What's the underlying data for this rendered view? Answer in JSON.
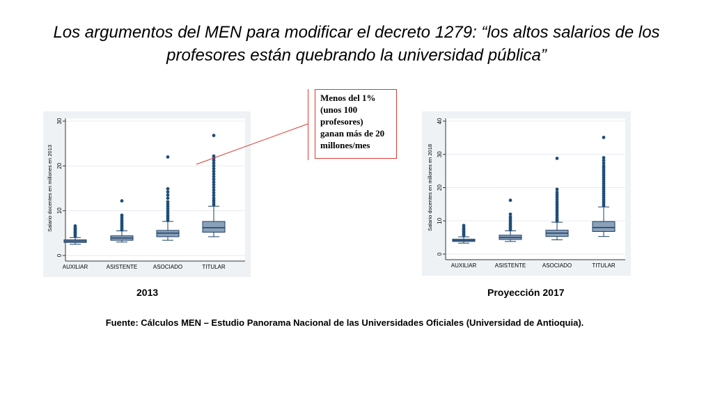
{
  "slide": {
    "title_line1": "Los argumentos del MEN para modificar el decreto 1279: “los altos salarios de los",
    "title_line2": "profesores están quebrando la universidad pública”",
    "source": "Fuente: Cálculos MEN – Estudio Panorama Nacional de las Universidades Oficiales (Universidad de Antioquia)."
  },
  "callout": {
    "lines": [
      "Menos del 1%",
      "(unos 100",
      "profesores)",
      "ganan más de 20",
      "millones/mes"
    ],
    "border_color": "#d83a32"
  },
  "colors": {
    "panel_bg": "#eef2f5",
    "box_fill": "#8aa1b9",
    "box_stroke": "#1d3f66",
    "outlier": "#1f4e79",
    "grid": "#ffffff"
  },
  "chart_data": [
    {
      "type": "box",
      "caption": "2013",
      "ylabel": "Salario docentes en millones en 2013",
      "ylim": [
        0,
        30
      ],
      "yticks": [
        0,
        10,
        20,
        30
      ],
      "grid": true,
      "categories": [
        "AUXILIAR",
        "ASISTENTE",
        "ASOCIADO",
        "TITULAR"
      ],
      "boxes": [
        {
          "whisker_low": 2.5,
          "q1": 2.9,
          "median": 3.2,
          "q3": 3.5,
          "whisker_high": 4.0,
          "outliers": [
            4.3,
            4.6,
            4.9,
            5.1,
            5.3,
            5.6,
            5.9,
            6.2,
            6.6
          ]
        },
        {
          "whisker_low": 3.0,
          "q1": 3.4,
          "median": 3.9,
          "q3": 4.4,
          "whisker_high": 5.5,
          "outliers": [
            5.7,
            6.0,
            6.4,
            6.8,
            7.2,
            7.6,
            8.0,
            8.5,
            9.0,
            12.2
          ]
        },
        {
          "whisker_low": 3.4,
          "q1": 4.2,
          "median": 5.0,
          "q3": 5.6,
          "whisker_high": 7.6,
          "outliers": [
            7.8,
            8.2,
            8.6,
            9.0,
            9.5,
            10.0,
            10.5,
            11.0,
            11.5,
            12.0,
            12.8,
            13.5,
            14.2,
            14.9,
            22.0
          ]
        },
        {
          "whisker_low": 4.2,
          "q1": 5.2,
          "median": 6.2,
          "q3": 7.6,
          "whisker_high": 11.0,
          "outliers": [
            11.3,
            11.8,
            12.3,
            12.8,
            13.4,
            14.0,
            14.6,
            15.2,
            15.8,
            16.4,
            17.0,
            17.6,
            18.2,
            18.8,
            19.4,
            20.0,
            20.6,
            21.2,
            21.7,
            22.2,
            26.8
          ]
        }
      ]
    },
    {
      "type": "box",
      "caption": "Proyección 2017",
      "ylabel": "Salario docentes en millones en 2018",
      "ylim": [
        0,
        40
      ],
      "yticks": [
        0,
        10,
        20,
        30,
        40
      ],
      "grid": true,
      "categories": [
        "AUXILIAR",
        "ASISTENTE",
        "ASOCIADO",
        "TITULAR"
      ],
      "boxes": [
        {
          "whisker_low": 3.3,
          "q1": 3.8,
          "median": 4.1,
          "q3": 4.5,
          "whisker_high": 5.2,
          "outliers": [
            5.5,
            5.9,
            6.3,
            6.7,
            7.1,
            7.5,
            8.0,
            8.6
          ]
        },
        {
          "whisker_low": 3.8,
          "q1": 4.4,
          "median": 5.0,
          "q3": 5.7,
          "whisker_high": 7.0,
          "outliers": [
            7.3,
            7.8,
            8.3,
            8.8,
            9.4,
            10.0,
            10.6,
            11.2,
            12.0,
            16.2
          ]
        },
        {
          "whisker_low": 4.3,
          "q1": 5.3,
          "median": 6.3,
          "q3": 7.2,
          "whisker_high": 9.6,
          "outliers": [
            9.9,
            10.4,
            11.0,
            11.6,
            12.2,
            12.8,
            13.4,
            14.0,
            14.6,
            15.2,
            15.8,
            16.5,
            17.2,
            17.9,
            18.6,
            19.5,
            28.8
          ]
        },
        {
          "whisker_low": 5.3,
          "q1": 6.8,
          "median": 8.0,
          "q3": 9.8,
          "whisker_high": 14.2,
          "outliers": [
            14.6,
            15.2,
            15.8,
            16.4,
            17.0,
            17.6,
            18.2,
            18.8,
            19.4,
            20.0,
            20.6,
            21.2,
            21.8,
            22.4,
            23.0,
            23.6,
            24.2,
            24.8,
            25.4,
            26.0,
            26.6,
            27.4,
            28.2,
            29.0,
            35.1
          ]
        }
      ]
    }
  ]
}
